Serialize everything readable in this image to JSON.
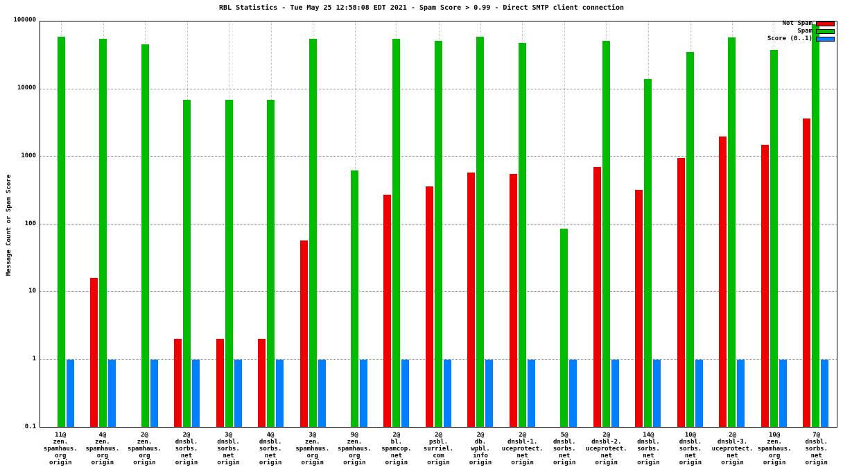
{
  "chart": {
    "title": "RBL Statistics - Tue May 25 12:58:08 EDT 2021 - Spam Score > 0.99 - Direct SMTP client connection",
    "y_axis_label": "Message Count or Spam Score",
    "y_ticks": [
      "100000",
      "10000",
      "1000",
      "100",
      "10",
      "1",
      "0.1"
    ]
  },
  "chart_data": {
    "type": "bar",
    "scale": "log",
    "title": "RBL Statistics - Tue May 25 12:58:08 EDT 2021 - Spam Score > 0.99 - Direct SMTP client connection",
    "xlabel": "",
    "ylabel": "Message Count or Spam Score",
    "ylim": [
      0.1,
      100000
    ],
    "grid": true,
    "legend_position": "top-right",
    "categories": [
      [
        "11@",
        "zen.",
        "spamhaus.",
        "org",
        "origin"
      ],
      [
        "4@",
        "zen.",
        "spamhaus.",
        "org",
        "origin"
      ],
      [
        "2@",
        "zen.",
        "spamhaus.",
        "org",
        "origin"
      ],
      [
        "2@",
        "dnsbl.",
        "sorbs.",
        "net",
        "origin"
      ],
      [
        "3@",
        "dnsbl.",
        "sorbs.",
        "net",
        "origin"
      ],
      [
        "4@",
        "dnsbl.",
        "sorbs.",
        "net",
        "origin"
      ],
      [
        "3@",
        "zen.",
        "spamhaus.",
        "org",
        "origin"
      ],
      [
        "9@",
        "zen.",
        "spamhaus.",
        "org",
        "origin"
      ],
      [
        "2@",
        "bl.",
        "spamcop.",
        "net",
        "origin"
      ],
      [
        "2@",
        "psbl.",
        "surriel.",
        "com",
        "origin"
      ],
      [
        "2@",
        "db.",
        "wpbl.",
        "info",
        "origin"
      ],
      [
        "2@",
        "dnsbl-1.",
        "uceprotect.",
        "net",
        "origin"
      ],
      [
        "5@",
        "dnsbl.",
        "sorbs.",
        "net",
        "origin"
      ],
      [
        "2@",
        "dnsbl-2.",
        "uceprotect.",
        "net",
        "origin"
      ],
      [
        "14@",
        "dnsbl.",
        "sorbs.",
        "net",
        "origin"
      ],
      [
        "10@",
        "dnsbl.",
        "sorbs.",
        "net",
        "origin"
      ],
      [
        "2@",
        "dnsbl-3.",
        "uceprotect.",
        "net",
        "origin"
      ],
      [
        "10@",
        "zen.",
        "spamhaus.",
        "org",
        "origin"
      ],
      [
        "7@",
        "dnsbl.",
        "sorbs.",
        "net",
        "origin"
      ]
    ],
    "series": [
      {
        "name": "Not Spam",
        "color": "#ee0000",
        "values": [
          0,
          16,
          0,
          2,
          2,
          2,
          57,
          0,
          270,
          360,
          580,
          560,
          0,
          700,
          320,
          950,
          2000,
          1500,
          3700
        ]
      },
      {
        "name": "Spam",
        "color": "#00bb00",
        "values": [
          60000,
          55000,
          46000,
          7000,
          7000,
          7000,
          55000,
          620,
          55000,
          52000,
          60000,
          48000,
          85,
          52000,
          14000,
          35000,
          58000,
          38000,
          90000
        ]
      },
      {
        "name": "Score (0..1)",
        "color": "#0080ff",
        "values": [
          1,
          1,
          1,
          1,
          1,
          1,
          1,
          1,
          1,
          1,
          1,
          1,
          1,
          1,
          1,
          1,
          1,
          1,
          1
        ]
      }
    ]
  }
}
